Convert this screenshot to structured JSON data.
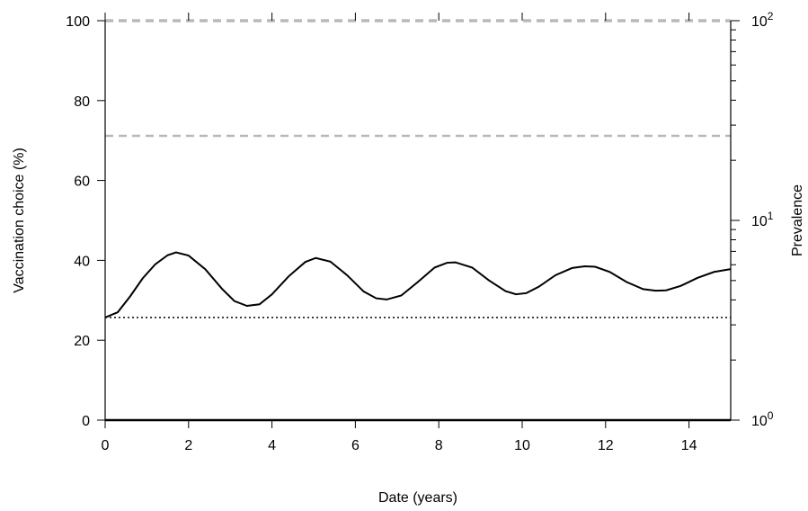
{
  "chart_data": {
    "type": "line",
    "title": "",
    "xlabel": "Date (years)",
    "ylabel": "Vaccination choice (%)",
    "y2label": "Prevalence",
    "xlim": [
      0,
      15
    ],
    "ylim": [
      0,
      100
    ],
    "y2lim": [
      1,
      100
    ],
    "y2scale": "log",
    "grid": false,
    "legend": "none",
    "x_ticks": [
      0,
      2,
      4,
      6,
      8,
      10,
      12,
      14
    ],
    "y_ticks": [
      0,
      20,
      40,
      60,
      80,
      100
    ],
    "y2_ticks": [
      {
        "value": 1,
        "base": "10",
        "exp": "0"
      },
      {
        "value": 10,
        "base": "10",
        "exp": "1"
      },
      {
        "value": 100,
        "base": "10",
        "exp": "2"
      }
    ],
    "y2_minor_ticks": [
      2,
      3,
      4,
      5,
      6,
      7,
      8,
      9,
      20,
      30,
      40,
      50,
      60,
      70,
      80,
      90
    ],
    "series": [
      {
        "axis": "left",
        "style": "solid",
        "color": "#000000",
        "x": [
          0,
          0.3,
          0.6,
          0.9,
          1.2,
          1.5,
          1.7,
          2.0,
          2.4,
          2.8,
          3.1,
          3.4,
          3.7,
          4.0,
          4.4,
          4.8,
          5.05,
          5.4,
          5.8,
          6.2,
          6.5,
          6.75,
          7.1,
          7.5,
          7.9,
          8.2,
          8.4,
          8.8,
          9.2,
          9.6,
          9.85,
          10.1,
          10.4,
          10.8,
          11.2,
          11.5,
          11.75,
          12.1,
          12.5,
          12.9,
          13.2,
          13.45,
          13.8,
          14.2,
          14.6,
          15.0
        ],
        "y": [
          25.7,
          27.0,
          31.0,
          35.5,
          39.0,
          41.3,
          42.0,
          41.2,
          37.8,
          32.9,
          29.8,
          28.6,
          29.0,
          31.5,
          36.0,
          39.6,
          40.6,
          39.7,
          36.3,
          32.2,
          30.5,
          30.2,
          31.2,
          34.6,
          38.2,
          39.4,
          39.5,
          38.2,
          35.0,
          32.3,
          31.5,
          31.8,
          33.4,
          36.3,
          38.1,
          38.5,
          38.4,
          37.1,
          34.6,
          32.8,
          32.4,
          32.5,
          33.6,
          35.6,
          37.1,
          37.8
        ]
      },
      {
        "axis": "left",
        "style": "dotted",
        "color": "#000000",
        "x": [
          0,
          15
        ],
        "y": [
          25.7,
          25.7
        ]
      },
      {
        "axis": "right",
        "style": "dashed",
        "color": "#000000",
        "x": [
          0,
          15
        ],
        "y": [
          100,
          100
        ]
      },
      {
        "axis": "right",
        "style": "dashed",
        "color": "#b8b8b8",
        "x": [
          0,
          15
        ],
        "y": [
          100,
          100
        ]
      },
      {
        "axis": "right",
        "style": "dashed",
        "color": "#b8b8b8",
        "x": [
          0,
          15
        ],
        "y": [
          26.5,
          26.5
        ]
      },
      {
        "axis": "right",
        "style": "solid",
        "color": "#000000",
        "x": [
          0,
          15
        ],
        "y": [
          1,
          1
        ]
      }
    ]
  }
}
